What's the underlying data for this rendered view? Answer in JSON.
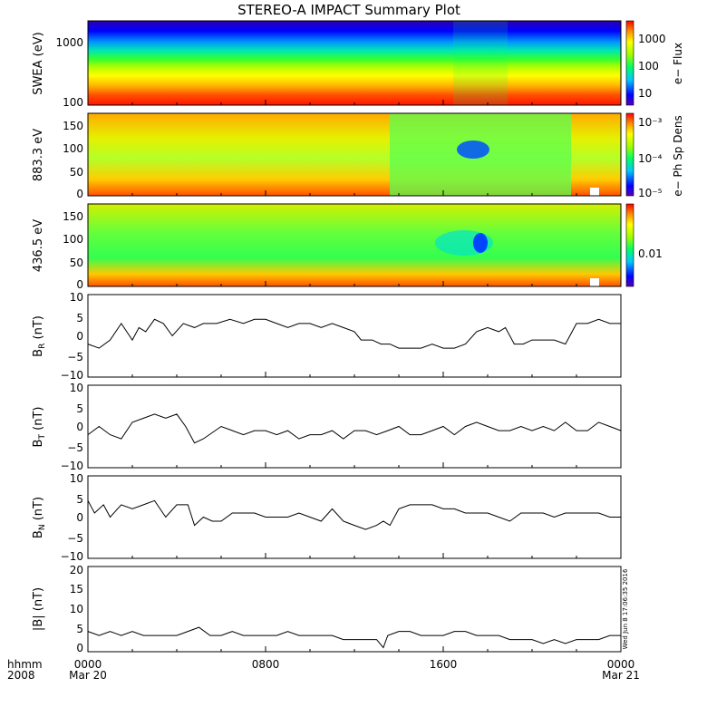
{
  "title": "STEREO-A IMPACT Summary Plot",
  "stamp": "Wed Jun  8 17:06:35 2016",
  "time_axis": {
    "row1_label": "hhmm",
    "row2_label": "2008",
    "ticks": [
      {
        "time": "0000",
        "date": "Mar 20"
      },
      {
        "time": "0800",
        "date": ""
      },
      {
        "time": "1600",
        "date": ""
      },
      {
        "time": "0000",
        "date": "Mar 21"
      }
    ]
  },
  "chart_data": [
    {
      "type": "heatmap",
      "ylabel": "SWEA (eV)",
      "y_scale": "log",
      "ylim": [
        90,
        2000
      ],
      "y_ticks": [
        "1000",
        "100"
      ],
      "colorbar": {
        "label": "e− Flux",
        "ticks": [
          "1000",
          "100",
          "10"
        ],
        "scale": "log"
      },
      "description_values": {
        "low_energy_flux_approx": 3000,
        "high_energy_flux_approx": 3
      }
    },
    {
      "type": "heatmap",
      "ylabel": "883.3 eV",
      "ylim": [
        0,
        180
      ],
      "y_ticks": [
        "150",
        "100",
        "50",
        "0"
      ],
      "colorbar": {
        "label": "e− Ph Sp Dens",
        "ticks": [
          "10⁻³",
          "10⁻⁴",
          "10⁻⁵"
        ],
        "scale": "log"
      }
    },
    {
      "type": "heatmap",
      "ylabel": "436.5 eV",
      "ylim": [
        0,
        180
      ],
      "y_ticks": [
        "150",
        "100",
        "50",
        "0"
      ],
      "colorbar": {
        "label": "e− Ph Sp Dens",
        "ticks": [
          "0.01"
        ],
        "scale": "log"
      }
    },
    {
      "type": "line",
      "ylabel": "B_R (nT)",
      "ylim": [
        -10,
        10
      ],
      "y_ticks": [
        "10",
        "5",
        "0",
        "−5",
        "−10"
      ],
      "x_hours": [
        0,
        0.5,
        1,
        1.5,
        2,
        2.3,
        2.6,
        3,
        3.4,
        3.8,
        4.3,
        4.8,
        5.2,
        5.8,
        6.4,
        7,
        7.5,
        8,
        8.5,
        9,
        9.5,
        10,
        10.5,
        11,
        11.5,
        12,
        12.3,
        12.8,
        13.2,
        13.6,
        14,
        14.5,
        15,
        15.5,
        16,
        16.5,
        17,
        17.5,
        18,
        18.5,
        18.8,
        19.2,
        19.6,
        20,
        20.5,
        21,
        21.5,
        22,
        22.5,
        23,
        23.5,
        24
      ],
      "values": [
        -2,
        -3,
        -1,
        3,
        -1,
        2,
        1,
        4,
        3,
        0,
        3,
        2,
        3,
        3,
        4,
        3,
        4,
        4,
        3,
        2,
        3,
        3,
        2,
        3,
        2,
        1,
        -1,
        -1,
        -2,
        -2,
        -3,
        -3,
        -3,
        -2,
        -3,
        -3,
        -2,
        1,
        2,
        1,
        2,
        -2,
        -2,
        -1,
        -1,
        -1,
        -2,
        3,
        3,
        4,
        3,
        3
      ]
    },
    {
      "type": "line",
      "ylabel": "B_T (nT)",
      "ylim": [
        -10,
        10
      ],
      "y_ticks": [
        "10",
        "5",
        "0",
        "−5",
        "−10"
      ],
      "x_hours": [
        0,
        0.5,
        1,
        1.5,
        2,
        2.5,
        3,
        3.5,
        4,
        4.4,
        4.8,
        5.2,
        6,
        7,
        7.5,
        8,
        8.5,
        9,
        9.5,
        10,
        10.5,
        11,
        11.5,
        12,
        12.5,
        13,
        13.5,
        14,
        14.5,
        15,
        15.5,
        16,
        16.5,
        17,
        17.5,
        18,
        18.5,
        19,
        19.5,
        20,
        20.5,
        21,
        21.5,
        22,
        22.5,
        23,
        23.5,
        24
      ],
      "values": [
        -2,
        0,
        -2,
        -3,
        1,
        2,
        3,
        2,
        3,
        0,
        -4,
        -3,
        0,
        -2,
        -1,
        -1,
        -2,
        -1,
        -3,
        -2,
        -2,
        -1,
        -3,
        -1,
        -1,
        -2,
        -1,
        0,
        -2,
        -2,
        -1,
        0,
        -2,
        0,
        1,
        0,
        -1,
        -1,
        0,
        -1,
        0,
        -1,
        1,
        -1,
        -1,
        1,
        0,
        -1
      ]
    },
    {
      "type": "line",
      "ylabel": "B_N (nT)",
      "ylim": [
        -10,
        10
      ],
      "y_ticks": [
        "10",
        "5",
        "0",
        "−5",
        "−10"
      ],
      "x_hours": [
        0,
        0.3,
        0.7,
        1,
        1.5,
        2,
        2.5,
        3,
        3.5,
        4,
        4.5,
        4.8,
        5.2,
        5.6,
        6,
        6.5,
        7,
        7.5,
        8,
        8.5,
        9,
        9.5,
        10,
        10.5,
        11,
        11.5,
        12,
        12.5,
        13,
        13.3,
        13.6,
        14,
        14.5,
        15,
        15.5,
        16,
        16.5,
        17,
        17.5,
        18,
        18.5,
        19,
        19.5,
        20,
        20.5,
        21,
        21.5,
        22,
        22.5,
        23,
        23.5,
        24
      ],
      "values": [
        4,
        1,
        3,
        0,
        3,
        2,
        3,
        4,
        0,
        3,
        3,
        -2,
        0,
        -1,
        -1,
        1,
        1,
        1,
        0,
        0,
        0,
        1,
        0,
        -1,
        2,
        -1,
        -2,
        -3,
        -2,
        -1,
        -2,
        2,
        3,
        3,
        3,
        2,
        2,
        1,
        1,
        1,
        0,
        -1,
        1,
        1,
        1,
        0,
        1,
        1,
        1,
        1,
        0,
        0
      ]
    },
    {
      "type": "line",
      "ylabel": "|B| (nT)",
      "ylim": [
        -1,
        20
      ],
      "y_ticks": [
        "20",
        "15",
        "10",
        "5",
        "0"
      ],
      "x_hours": [
        0,
        0.5,
        1,
        1.5,
        2,
        2.5,
        3,
        3.5,
        4,
        4.5,
        5,
        5.5,
        6,
        6.5,
        7,
        7.5,
        8,
        8.5,
        9,
        9.5,
        10,
        10.5,
        11,
        11.5,
        12,
        12.5,
        13,
        13.3,
        13.5,
        14,
        14.5,
        15,
        15.5,
        16,
        16.5,
        17,
        17.5,
        18,
        18.5,
        19,
        19.5,
        20,
        20.5,
        21,
        21.5,
        22,
        22.5,
        23,
        23.5,
        24
      ],
      "values": [
        4,
        3,
        4,
        3,
        4,
        3,
        3,
        3,
        3,
        4,
        5,
        3,
        3,
        4,
        3,
        3,
        3,
        3,
        4,
        3,
        3,
        3,
        3,
        2,
        2,
        2,
        2,
        0,
        3,
        4,
        4,
        3,
        3,
        3,
        4,
        4,
        3,
        3,
        3,
        2,
        2,
        2,
        1,
        2,
        1,
        2,
        2,
        2,
        3,
        3
      ]
    }
  ]
}
